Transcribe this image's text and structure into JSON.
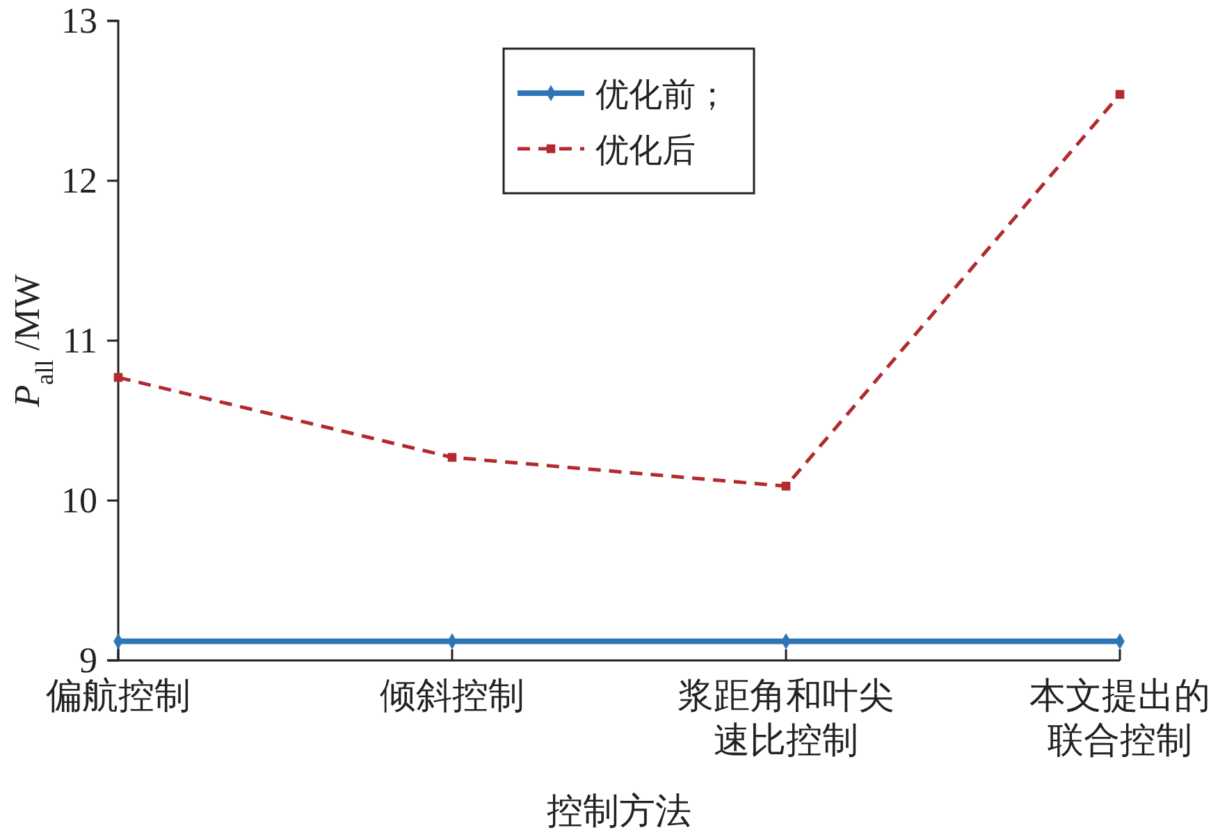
{
  "chart_data": {
    "type": "line",
    "xlabel": "控制方法",
    "ylabel": "P$_{all}$ /MW",
    "categories": [
      "偏航控制",
      "倾斜控制",
      "浆距角和叶尖速比控制",
      "本文提出的联合控制"
    ],
    "series": [
      {
        "name": "优化前；",
        "color": "#2e75b6",
        "values": [
          9.12,
          9.12,
          9.12,
          9.12
        ],
        "marker": "diamond",
        "line_style": "solid"
      },
      {
        "name": "优化后",
        "color": "#b22a2e",
        "values": [
          10.77,
          10.27,
          10.09,
          12.54
        ],
        "marker": "square",
        "line_style": "dashed"
      }
    ],
    "ylim": [
      9,
      13
    ],
    "yticks": [
      9,
      10,
      11,
      12,
      13
    ],
    "grid": false,
    "legend": "top"
  }
}
